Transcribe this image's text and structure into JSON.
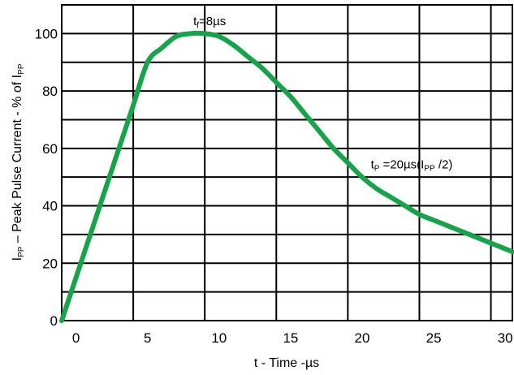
{
  "chart_data": {
    "type": "line",
    "title": "",
    "xlabel": "t - Time -µs",
    "ylabel": {
      "sym": "I",
      "sym_sub": "PP",
      "text": " – Peak Pulse Current - % of  I",
      "tail_sub": "PP"
    },
    "xlim": [
      -1,
      30.5
    ],
    "ylim": [
      0,
      110
    ],
    "x_ticks": [
      0,
      5,
      10,
      15,
      20,
      25,
      30
    ],
    "y_ticks": [
      0,
      20,
      40,
      60,
      80,
      100
    ],
    "x_gridlines": [
      4,
      9,
      14,
      19,
      24,
      29
    ],
    "y_gridlines": [
      10,
      20,
      30,
      40,
      50,
      60,
      70,
      80,
      90,
      100
    ],
    "grid": true,
    "series": [
      {
        "color": "#16a34a",
        "x": [
          -1,
          0,
          1,
          2,
          3,
          4,
          5,
          6,
          7,
          8,
          9,
          10,
          11,
          12,
          13,
          14,
          15,
          16,
          17,
          18,
          19,
          20,
          21,
          22,
          23,
          24,
          25,
          26,
          27,
          28,
          29,
          30,
          30.5
        ],
        "y": [
          0,
          15,
          30,
          45,
          60,
          75,
          90,
          95,
          99,
          100,
          100,
          99,
          96,
          92,
          88,
          83,
          78,
          72,
          66,
          60,
          55,
          50,
          46,
          43,
          40,
          37,
          35,
          33,
          31,
          29,
          27,
          25,
          24
        ]
      }
    ],
    "annotations": [
      {
        "main": "t",
        "sub": "f",
        "rest": "=8µs",
        "x": 8.2,
        "y": 103
      },
      {
        "main": "t",
        "sub": "P",
        "rest": " =20µs(I",
        "sub2": "PP",
        "rest2": " /2)",
        "x": 20.6,
        "y": 53
      }
    ]
  }
}
